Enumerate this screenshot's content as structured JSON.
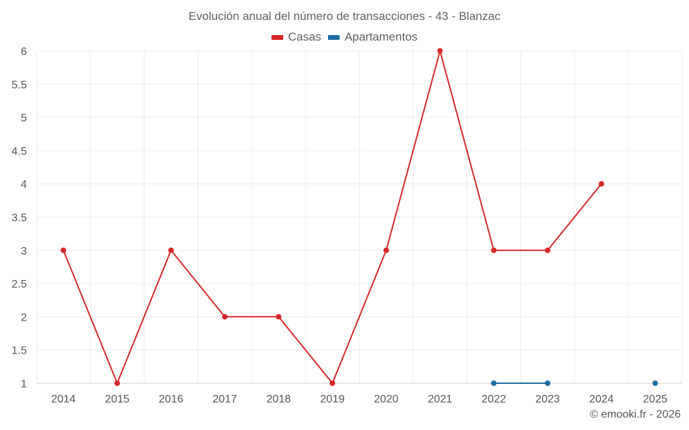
{
  "chart_data": {
    "type": "line",
    "title": "Evolución anual del número de transacciones - 43 - Blanzac",
    "categories": [
      "2014",
      "2015",
      "2016",
      "2017",
      "2018",
      "2019",
      "2020",
      "2021",
      "2022",
      "2023",
      "2024",
      "2025"
    ],
    "series": [
      {
        "name": "Casas",
        "color": "#d62728",
        "values": [
          3,
          1,
          3,
          2,
          2,
          1,
          3,
          6,
          3,
          3,
          4,
          null
        ]
      },
      {
        "name": "Apartamentos",
        "color": "#1f6ea3",
        "values": [
          null,
          null,
          null,
          null,
          null,
          null,
          null,
          null,
          1,
          1,
          null,
          1
        ]
      }
    ],
    "ylim": [
      1,
      6
    ],
    "yticks": [
      "1",
      "1.5",
      "2",
      "2.5",
      "3",
      "3.5",
      "4",
      "4.5",
      "5",
      "5.5",
      "6"
    ],
    "legend_position": "top-center",
    "grid": true
  },
  "credit": "© emooki.fr - 2026"
}
